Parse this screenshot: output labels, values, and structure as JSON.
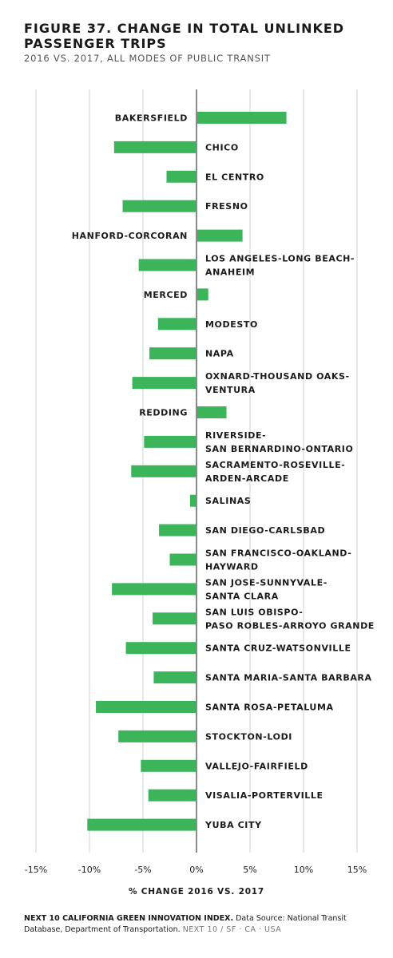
{
  "header": {
    "title": "FIGURE 37. CHANGE IN TOTAL UNLINKED PASSENGER TRIPS",
    "subtitle": "2016 VS. 2017, ALL MODES OF PUBLIC TRANSIT"
  },
  "footer": {
    "brand": "NEXT 10 CALIFORNIA GREEN INNOVATION INDEX.",
    "source": " Data Source: National Transit Database, Department of Transportation.",
    "tag": "NEXT 10 / SF · CA · USA"
  },
  "colors": {
    "bar": "#3cb45a",
    "grid": "#d0d0d0",
    "zero": "#8a8a8a"
  },
  "chart_data": {
    "type": "bar",
    "orientation": "horizontal",
    "xlabel": "% CHANGE 2016 VS. 2017",
    "xlim": [
      -15,
      15
    ],
    "xticks": [
      {
        "value": -15,
        "label": "-15%"
      },
      {
        "value": -10,
        "label": "-10%"
      },
      {
        "value": -5,
        "label": "-5%"
      },
      {
        "value": 0,
        "label": "0%"
      },
      {
        "value": 5,
        "label": "5%"
      },
      {
        "value": 10,
        "label": "10%"
      },
      {
        "value": 15,
        "label": "15%"
      }
    ],
    "grid": true,
    "categories": [
      "BAKERSFIELD",
      "CHICO",
      "EL CENTRO",
      "FRESNO",
      "HANFORD-CORCORAN",
      "LOS ANGELES-LONG BEACH-ANAHEIM",
      "MERCED",
      "MODESTO",
      "NAPA",
      "OXNARD-THOUSAND OAKS-VENTURA",
      "REDDING",
      "RIVERSIDE-SAN BERNARDINO-ONTARIO",
      "SACRAMENTO-ROSEVILLE-ARDEN-ARCADE",
      "SALINAS",
      "SAN DIEGO-CARLSBAD",
      "SAN FRANCISCO-OAKLAND-HAYWARD",
      "SAN JOSE-SUNNYVALE-SANTA CLARA",
      "SAN LUIS OBISPO-PASO ROBLES-ARROYO GRANDE",
      "SANTA CRUZ-WATSONVILLE",
      "SANTA MARIA-SANTA BARBARA",
      "SANTA ROSA-PETALUMA",
      "STOCKTON-LODI",
      "VALLEJO-FAIRFIELD",
      "VISALIA-PORTERVILLE",
      "YUBA CITY"
    ],
    "label_lines": [
      [
        "BAKERSFIELD"
      ],
      [
        "CHICO"
      ],
      [
        "EL CENTRO"
      ],
      [
        "FRESNO"
      ],
      [
        "HANFORD-CORCORAN"
      ],
      [
        "LOS ANGELES-LONG BEACH-",
        "ANAHEIM"
      ],
      [
        "MERCED"
      ],
      [
        "MODESTO"
      ],
      [
        "NAPA"
      ],
      [
        "OXNARD-THOUSAND OAKS-",
        "VENTURA"
      ],
      [
        "REDDING"
      ],
      [
        "RIVERSIDE-",
        "SAN BERNARDINO-ONTARIO"
      ],
      [
        "SACRAMENTO-ROSEVILLE-",
        "ARDEN-ARCADE"
      ],
      [
        "SALINAS"
      ],
      [
        "SAN DIEGO-CARLSBAD"
      ],
      [
        "SAN FRANCISCO-OAKLAND-",
        "HAYWARD"
      ],
      [
        "SAN JOSE-SUNNYVALE-",
        "SANTA CLARA"
      ],
      [
        "SAN LUIS OBISPO-",
        "PASO ROBLES-ARROYO GRANDE"
      ],
      [
        "SANTA CRUZ-WATSONVILLE"
      ],
      [
        "SANTA MARIA-SANTA BARBARA"
      ],
      [
        "SANTA ROSA-PETALUMA"
      ],
      [
        "STOCKTON-LODI"
      ],
      [
        "VALLEJO-FAIRFIELD"
      ],
      [
        "VISALIA-PORTERVILLE"
      ],
      [
        "YUBA CITY"
      ]
    ],
    "values": [
      8.4,
      -7.7,
      -2.8,
      -6.9,
      4.3,
      -5.4,
      1.1,
      -3.6,
      -4.4,
      -6.0,
      2.8,
      -4.9,
      -6.1,
      -0.6,
      -3.5,
      -2.5,
      -7.9,
      -4.1,
      -6.6,
      -4.0,
      -9.4,
      -7.3,
      -5.2,
      -4.5,
      -10.2
    ]
  }
}
